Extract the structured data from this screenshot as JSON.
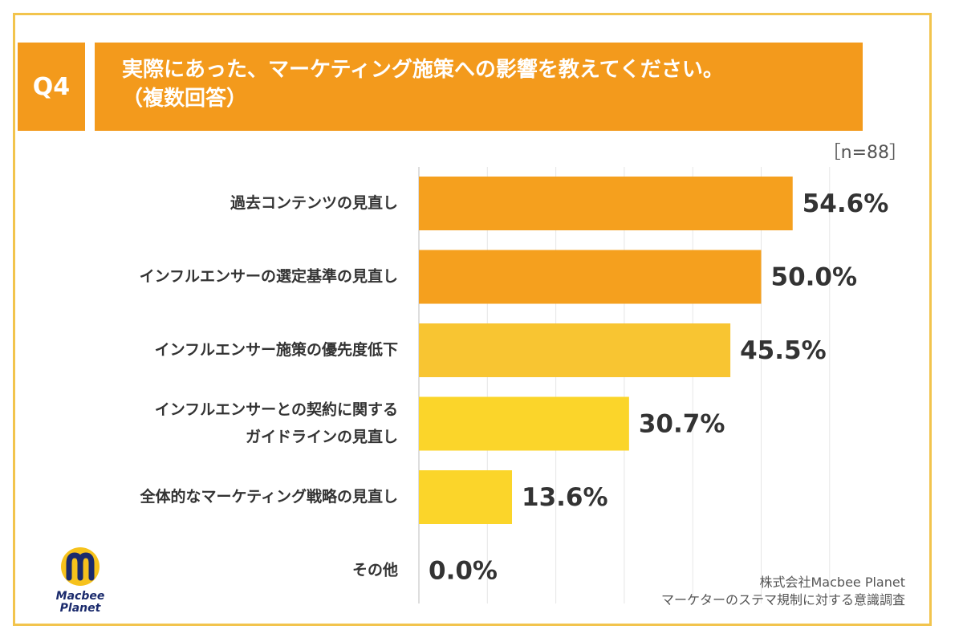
{
  "header": {
    "badge": "Q4",
    "title_line1": "実際にあった、マーケティング施策への影響を教えてください。",
    "title_line2": "（複数回答）"
  },
  "sample_size": "［n=88］",
  "chart_data": {
    "type": "bar",
    "orientation": "horizontal",
    "categories": [
      [
        "過去コンテンツの見直し"
      ],
      [
        "インフルエンサーの選定基準の見直し"
      ],
      [
        "インフルエンサー施策の優先度低下"
      ],
      [
        "インフルエンサーとの契約に関する",
        "ガイドラインの見直し"
      ],
      [
        "全体的なマーケティング戦略の見直し"
      ],
      [
        "その他"
      ]
    ],
    "values": [
      54.6,
      50.0,
      45.5,
      30.7,
      13.6,
      0.0
    ],
    "value_labels": [
      "54.6%",
      "50.0%",
      "45.5%",
      "30.7%",
      "13.6%",
      "0.0%"
    ],
    "bar_colors": [
      "#f5a01e",
      "#f5a01e",
      "#f8c532",
      "#fbd52a",
      "#fbd52a",
      "#fbd52a"
    ],
    "xlim": [
      0,
      60
    ],
    "grid": true
  },
  "credit": {
    "line1": "株式会社Macbee Planet",
    "line2": "マーケターのステマ規制に対する意識調査"
  },
  "logo": {
    "icon": "macbee-logo-icon",
    "line1": "Macbee",
    "line2": "Planet"
  },
  "colors": {
    "accent": "#f39a1c",
    "frame": "#f2c44d",
    "logo_blue": "#1a2a6c",
    "logo_yellow": "#f6c21c"
  }
}
